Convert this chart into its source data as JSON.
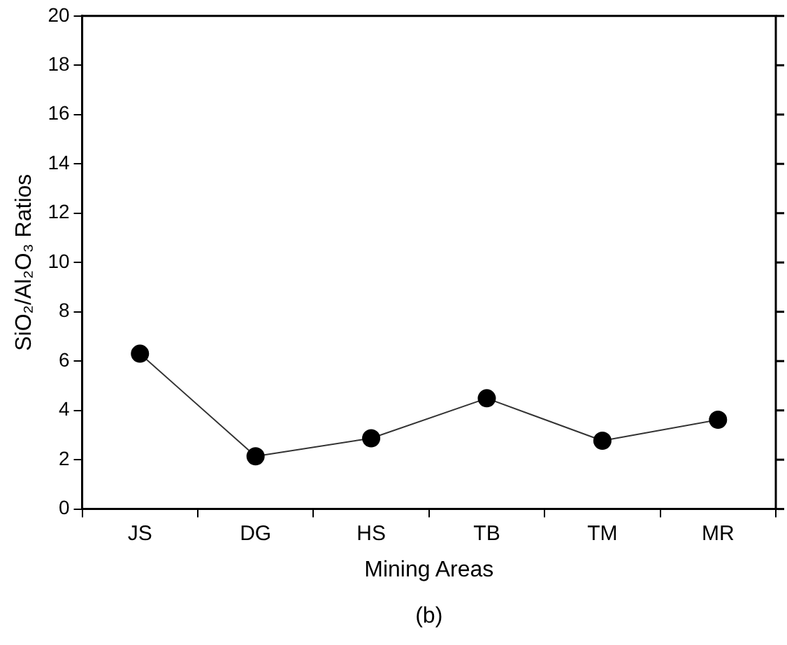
{
  "chart_data": {
    "type": "line",
    "categories": [
      "JS",
      "DG",
      "HS",
      "TB",
      "TM",
      "MR"
    ],
    "values": [
      6.3,
      2.14,
      2.87,
      4.49,
      2.77,
      3.62
    ],
    "color": "#000000",
    "xlabel": "Mining Areas",
    "ylabel": "SiO₂/Al₂O₃ Ratios",
    "ylim": [
      0,
      20
    ],
    "yticks": [
      0,
      2,
      4,
      6,
      8,
      10,
      12,
      14,
      16,
      18,
      20
    ],
    "grid": false,
    "legend": false,
    "marker": "circle",
    "line_style": "solid",
    "annotations": [
      "(b)"
    ]
  }
}
